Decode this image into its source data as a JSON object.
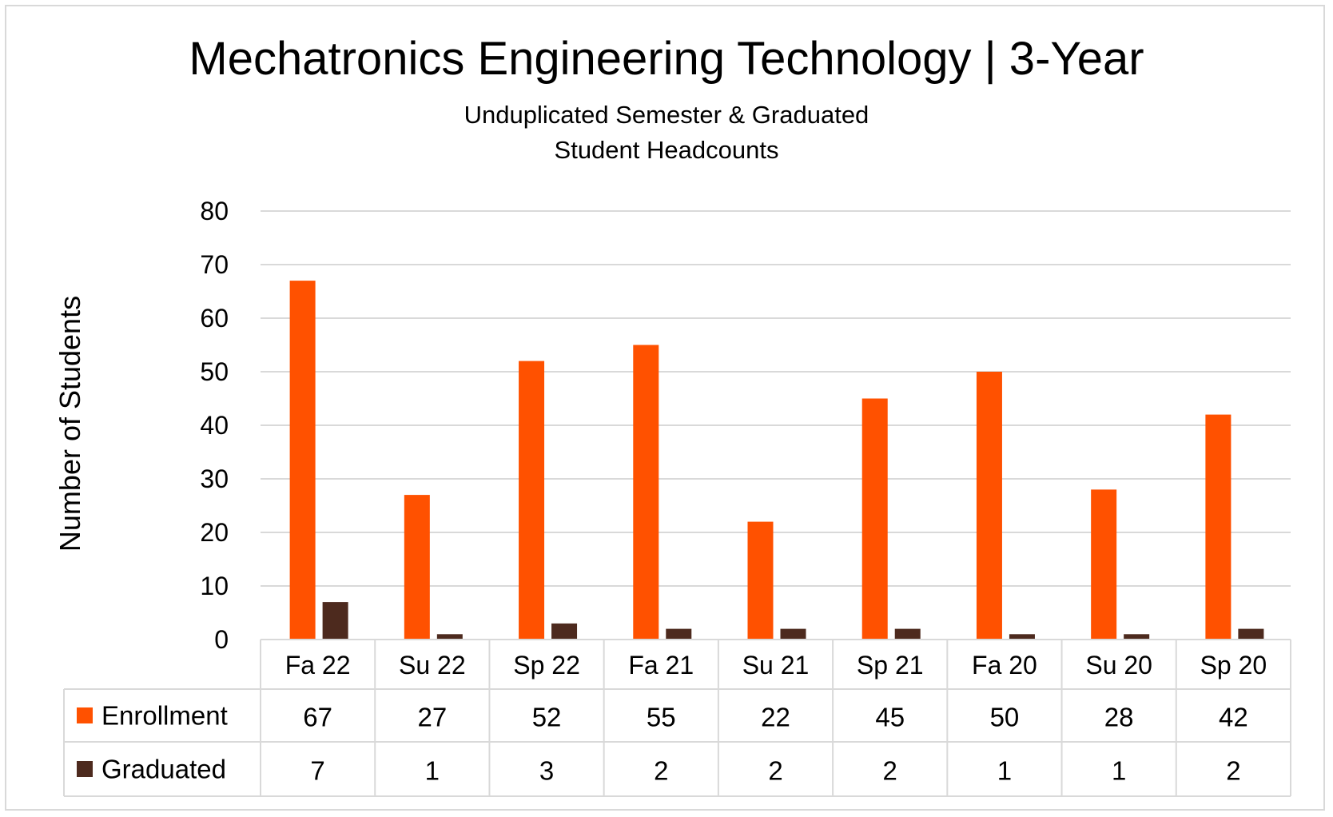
{
  "chart_data": {
    "type": "bar",
    "title": "Mechatronics Engineering Technology | 3-Year",
    "subtitle": [
      "Unduplicated Semester & Graduated",
      "Student Headcounts"
    ],
    "ylabel": "Number of Students",
    "xlabel": "",
    "ylim": [
      0,
      80
    ],
    "yticks": [
      0,
      10,
      20,
      30,
      40,
      50,
      60,
      70,
      80
    ],
    "grid": true,
    "legend": "data-table",
    "categories": [
      "Fa 22",
      "Su 22",
      "Sp 22",
      "Fa 21",
      "Su 21",
      "Sp 21",
      "Fa 20",
      "Su 20",
      "Sp 20"
    ],
    "series": [
      {
        "name": "Enrollment",
        "color": "#ff5100",
        "values": [
          67,
          27,
          52,
          55,
          22,
          45,
          50,
          28,
          42
        ]
      },
      {
        "name": "Graduated",
        "color": "#4d2a1e",
        "values": [
          7,
          1,
          3,
          2,
          2,
          2,
          1,
          1,
          2
        ]
      }
    ]
  }
}
